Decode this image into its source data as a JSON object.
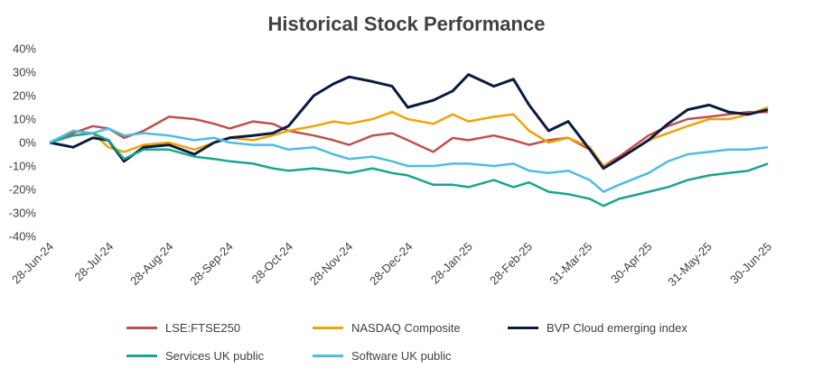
{
  "chart_data": {
    "type": "line",
    "title": "Historical Stock Performance",
    "xlabel": "",
    "ylabel": "",
    "ylim": [
      -40,
      40
    ],
    "y_ticks": [
      "40%",
      "30%",
      "20%",
      "10%",
      "0%",
      "-10%",
      "-20%",
      "-30%",
      "-40%"
    ],
    "x_ticks": [
      "28-Jun-24",
      "28-Jul-24",
      "28-Aug-24",
      "28-Sep-24",
      "28-Oct-24",
      "28-Nov-24",
      "28-Dec-24",
      "28-Jan-25",
      "28-Feb-25",
      "31-Mar-25",
      "30-Apr-25",
      "31-May-25",
      "30-Jun-25"
    ],
    "grid": false,
    "legend_position": "bottom",
    "series": [
      {
        "name": "LSE:FTSE250",
        "color": "#C0504D",
        "x": [
          "2024-06-28",
          "2024-07-10",
          "2024-07-20",
          "2024-07-28",
          "2024-08-05",
          "2024-08-15",
          "2024-08-28",
          "2024-09-10",
          "2024-09-20",
          "2024-09-28",
          "2024-10-10",
          "2024-10-20",
          "2024-10-28",
          "2024-11-10",
          "2024-11-20",
          "2024-11-28",
          "2024-12-10",
          "2024-12-20",
          "2024-12-28",
          "2025-01-10",
          "2025-01-20",
          "2025-01-28",
          "2025-02-10",
          "2025-02-20",
          "2025-02-28",
          "2025-03-10",
          "2025-03-20",
          "2025-03-31",
          "2025-04-07",
          "2025-04-15",
          "2025-04-30",
          "2025-05-10",
          "2025-05-20",
          "2025-05-31",
          "2025-06-10",
          "2025-06-20",
          "2025-06-30"
        ],
        "y": [
          0,
          4,
          7,
          6,
          2,
          5,
          11,
          10,
          8,
          6,
          9,
          8,
          5,
          3,
          1,
          -1,
          3,
          4,
          1,
          -4,
          2,
          1,
          3,
          1,
          -1,
          1,
          2,
          -3,
          -10,
          -6,
          3,
          7,
          10,
          11,
          12,
          13,
          13
        ]
      },
      {
        "name": "NASDAQ Composite",
        "color": "#F0A30A",
        "x": [
          "2024-06-28",
          "2024-07-10",
          "2024-07-20",
          "2024-07-28",
          "2024-08-05",
          "2024-08-15",
          "2024-08-28",
          "2024-09-10",
          "2024-09-20",
          "2024-09-28",
          "2024-10-10",
          "2024-10-20",
          "2024-10-28",
          "2024-11-10",
          "2024-11-20",
          "2024-11-28",
          "2024-12-10",
          "2024-12-20",
          "2024-12-28",
          "2025-01-10",
          "2025-01-20",
          "2025-01-28",
          "2025-02-10",
          "2025-02-20",
          "2025-02-28",
          "2025-03-10",
          "2025-03-20",
          "2025-03-31",
          "2025-04-07",
          "2025-04-15",
          "2025-04-30",
          "2025-05-10",
          "2025-05-20",
          "2025-05-31",
          "2025-06-10",
          "2025-06-20",
          "2025-06-30"
        ],
        "y": [
          0,
          3,
          4,
          -2,
          -4,
          -1,
          0,
          -3,
          0,
          2,
          1,
          3,
          5,
          7,
          9,
          8,
          10,
          13,
          10,
          8,
          12,
          9,
          11,
          12,
          5,
          0,
          2,
          -2,
          -10,
          -7,
          1,
          4,
          7,
          10,
          10,
          12,
          15
        ]
      },
      {
        "name": "BVP Cloud emerging index",
        "color": "#0D1A40",
        "x": [
          "2024-06-28",
          "2024-07-10",
          "2024-07-20",
          "2024-07-28",
          "2024-08-05",
          "2024-08-15",
          "2024-08-28",
          "2024-09-10",
          "2024-09-20",
          "2024-09-28",
          "2024-10-10",
          "2024-10-20",
          "2024-10-28",
          "2024-11-10",
          "2024-11-20",
          "2024-11-28",
          "2024-12-10",
          "2024-12-20",
          "2024-12-28",
          "2025-01-10",
          "2025-01-20",
          "2025-01-28",
          "2025-02-10",
          "2025-02-20",
          "2025-02-28",
          "2025-03-10",
          "2025-03-20",
          "2025-03-31",
          "2025-04-07",
          "2025-04-15",
          "2025-04-30",
          "2025-05-10",
          "2025-05-20",
          "2025-05-31",
          "2025-06-10",
          "2025-06-20",
          "2025-06-30"
        ],
        "y": [
          0,
          -2,
          2,
          1,
          -8,
          -2,
          -1,
          -5,
          0,
          2,
          3,
          4,
          7,
          20,
          25,
          28,
          26,
          24,
          15,
          18,
          22,
          29,
          24,
          27,
          16,
          5,
          9,
          -3,
          -11,
          -7,
          1,
          8,
          14,
          16,
          13,
          12,
          14
        ]
      },
      {
        "name": "Services UK public",
        "color": "#1AA58C",
        "x": [
          "2024-06-28",
          "2024-07-10",
          "2024-07-20",
          "2024-07-28",
          "2024-08-05",
          "2024-08-15",
          "2024-08-28",
          "2024-09-10",
          "2024-09-20",
          "2024-09-28",
          "2024-10-10",
          "2024-10-20",
          "2024-10-28",
          "2024-11-10",
          "2024-11-20",
          "2024-11-28",
          "2024-12-10",
          "2024-12-20",
          "2024-12-28",
          "2025-01-10",
          "2025-01-20",
          "2025-01-28",
          "2025-02-10",
          "2025-02-20",
          "2025-02-28",
          "2025-03-10",
          "2025-03-20",
          "2025-03-31",
          "2025-04-07",
          "2025-04-15",
          "2025-04-30",
          "2025-05-10",
          "2025-05-20",
          "2025-05-31",
          "2025-06-10",
          "2025-06-20",
          "2025-06-30"
        ],
        "y": [
          0,
          3,
          4,
          1,
          -7,
          -3,
          -3,
          -6,
          -7,
          -8,
          -9,
          -11,
          -12,
          -11,
          -12,
          -13,
          -11,
          -13,
          -14,
          -18,
          -18,
          -19,
          -16,
          -19,
          -17,
          -21,
          -22,
          -24,
          -27,
          -24,
          -21,
          -19,
          -16,
          -14,
          -13,
          -12,
          -9
        ]
      },
      {
        "name": "Software UK public",
        "color": "#4EBCE4",
        "x": [
          "2024-06-28",
          "2024-07-10",
          "2024-07-20",
          "2024-07-28",
          "2024-08-05",
          "2024-08-15",
          "2024-08-28",
          "2024-09-10",
          "2024-09-20",
          "2024-09-28",
          "2024-10-10",
          "2024-10-20",
          "2024-10-28",
          "2024-11-10",
          "2024-11-20",
          "2024-11-28",
          "2024-12-10",
          "2024-12-20",
          "2024-12-28",
          "2025-01-10",
          "2025-01-20",
          "2025-01-28",
          "2025-02-10",
          "2025-02-20",
          "2025-02-28",
          "2025-03-10",
          "2025-03-20",
          "2025-03-31",
          "2025-04-07",
          "2025-04-15",
          "2025-04-30",
          "2025-05-10",
          "2025-05-20",
          "2025-05-31",
          "2025-06-10",
          "2025-06-20",
          "2025-06-30"
        ],
        "y": [
          0,
          5,
          4,
          6,
          3,
          4,
          3,
          1,
          2,
          0,
          -1,
          -1,
          -3,
          -2,
          -5,
          -7,
          -6,
          -8,
          -10,
          -10,
          -9,
          -9,
          -10,
          -9,
          -12,
          -13,
          -12,
          -16,
          -21,
          -18,
          -13,
          -8,
          -5,
          -4,
          -3,
          -3,
          -2
        ]
      }
    ]
  }
}
